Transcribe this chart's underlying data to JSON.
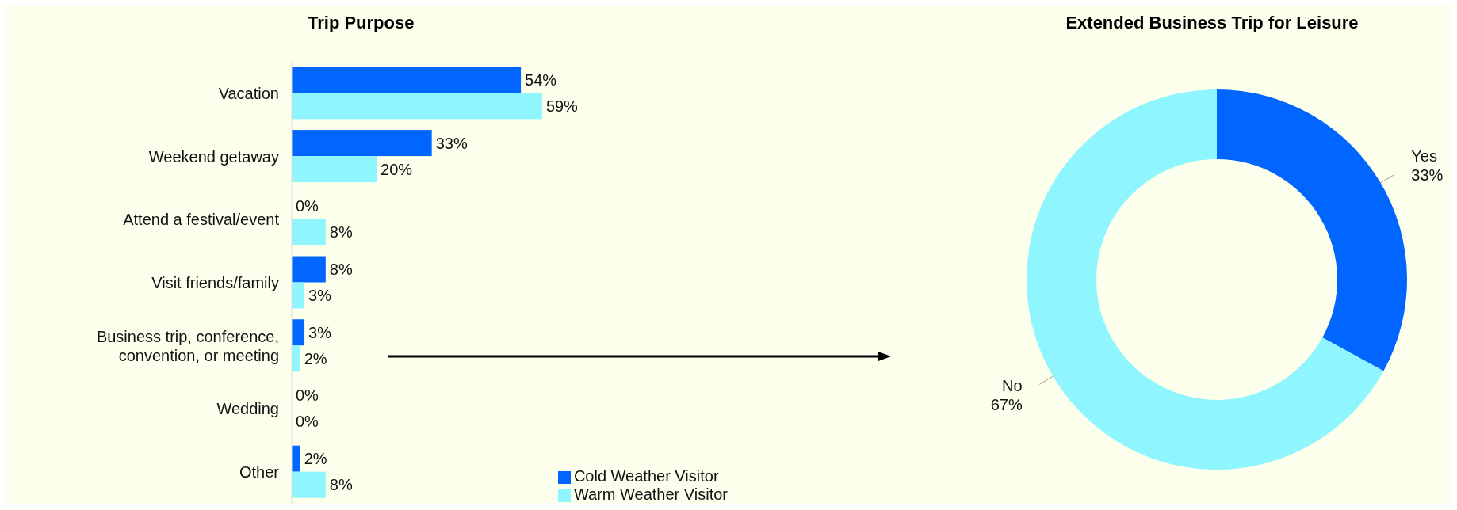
{
  "chart_data": [
    {
      "type": "bar",
      "orientation": "horizontal",
      "title": "Trip Purpose",
      "categories": [
        "Vacation",
        "Weekend getaway",
        "Attend a festival/event",
        "Visit friends/family",
        "Business trip, conference, convention, or meeting",
        "Wedding",
        "Other"
      ],
      "series": [
        {
          "name": "Cold Weather Visitor",
          "color": "#0066ff",
          "values": [
            54,
            33,
            0,
            8,
            3,
            0,
            2
          ],
          "value_labels": [
            "54%",
            "33%",
            "0%",
            "8%",
            "3%",
            "0%",
            "2%"
          ]
        },
        {
          "name": "Warm Weather Visitor",
          "color": "#8ff5ff",
          "values": [
            59,
            20,
            8,
            3,
            2,
            0,
            8
          ],
          "value_labels": [
            "59%",
            "20%",
            "8%",
            "3%",
            "2%",
            "0%",
            "8%"
          ]
        }
      ],
      "legend": "bottom right",
      "grid": false
    },
    {
      "type": "donut",
      "title": "Extended Business Trip for Leisure",
      "categories": [
        "Yes",
        "No"
      ],
      "values": [
        33,
        67
      ],
      "colors": [
        "#0066ff",
        "#8ff5ff"
      ],
      "value_labels": [
        "33%",
        "67%"
      ]
    }
  ]
}
